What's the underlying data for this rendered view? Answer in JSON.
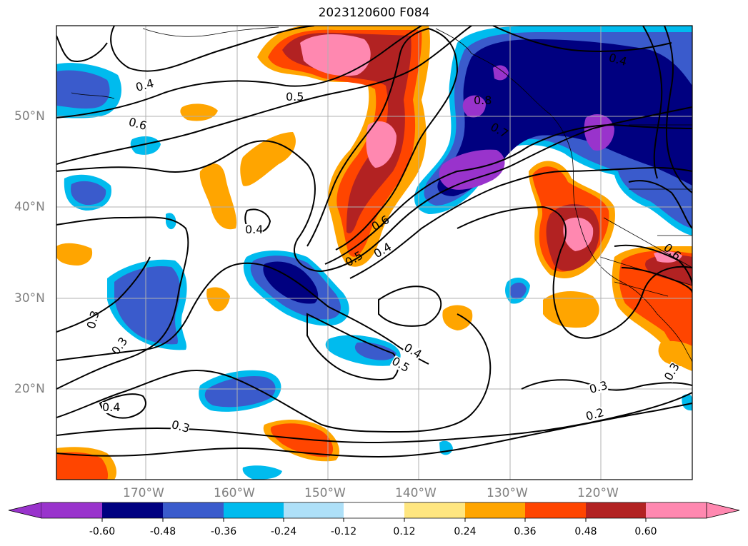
{
  "title": "2023120600 F084",
  "lat_labels": [
    "50°N",
    "40°N",
    "30°N",
    "20°N"
  ],
  "lon_labels": [
    "170°W",
    "160°W",
    "150°W",
    "140°W",
    "130°W",
    "120°W"
  ],
  "colorbar": {
    "labels": [
      "-0.60",
      "-0.48",
      "-0.36",
      "-0.24",
      "-0.12",
      "0.12",
      "0.24",
      "0.36",
      "0.48",
      "0.60"
    ],
    "colors": [
      "#9933cc",
      "#000080",
      "#3a5bcc",
      "#00bbee",
      "#aee0f8",
      "#ffffff",
      "#ffe680",
      "#ffa500",
      "#ff4500",
      "#b22222",
      "#ff88b0"
    ]
  },
  "contour_labels": [
    "0.4",
    "0.5",
    "0.6",
    "0.4",
    "0.6",
    "0.5",
    "0.4",
    "0.3",
    "0.3",
    "0.4",
    "0.3",
    "0.4",
    "0.5",
    "0.8",
    "0.7",
    "0.4",
    "0.6",
    "0.3",
    "0.3",
    "0.2"
  ]
}
